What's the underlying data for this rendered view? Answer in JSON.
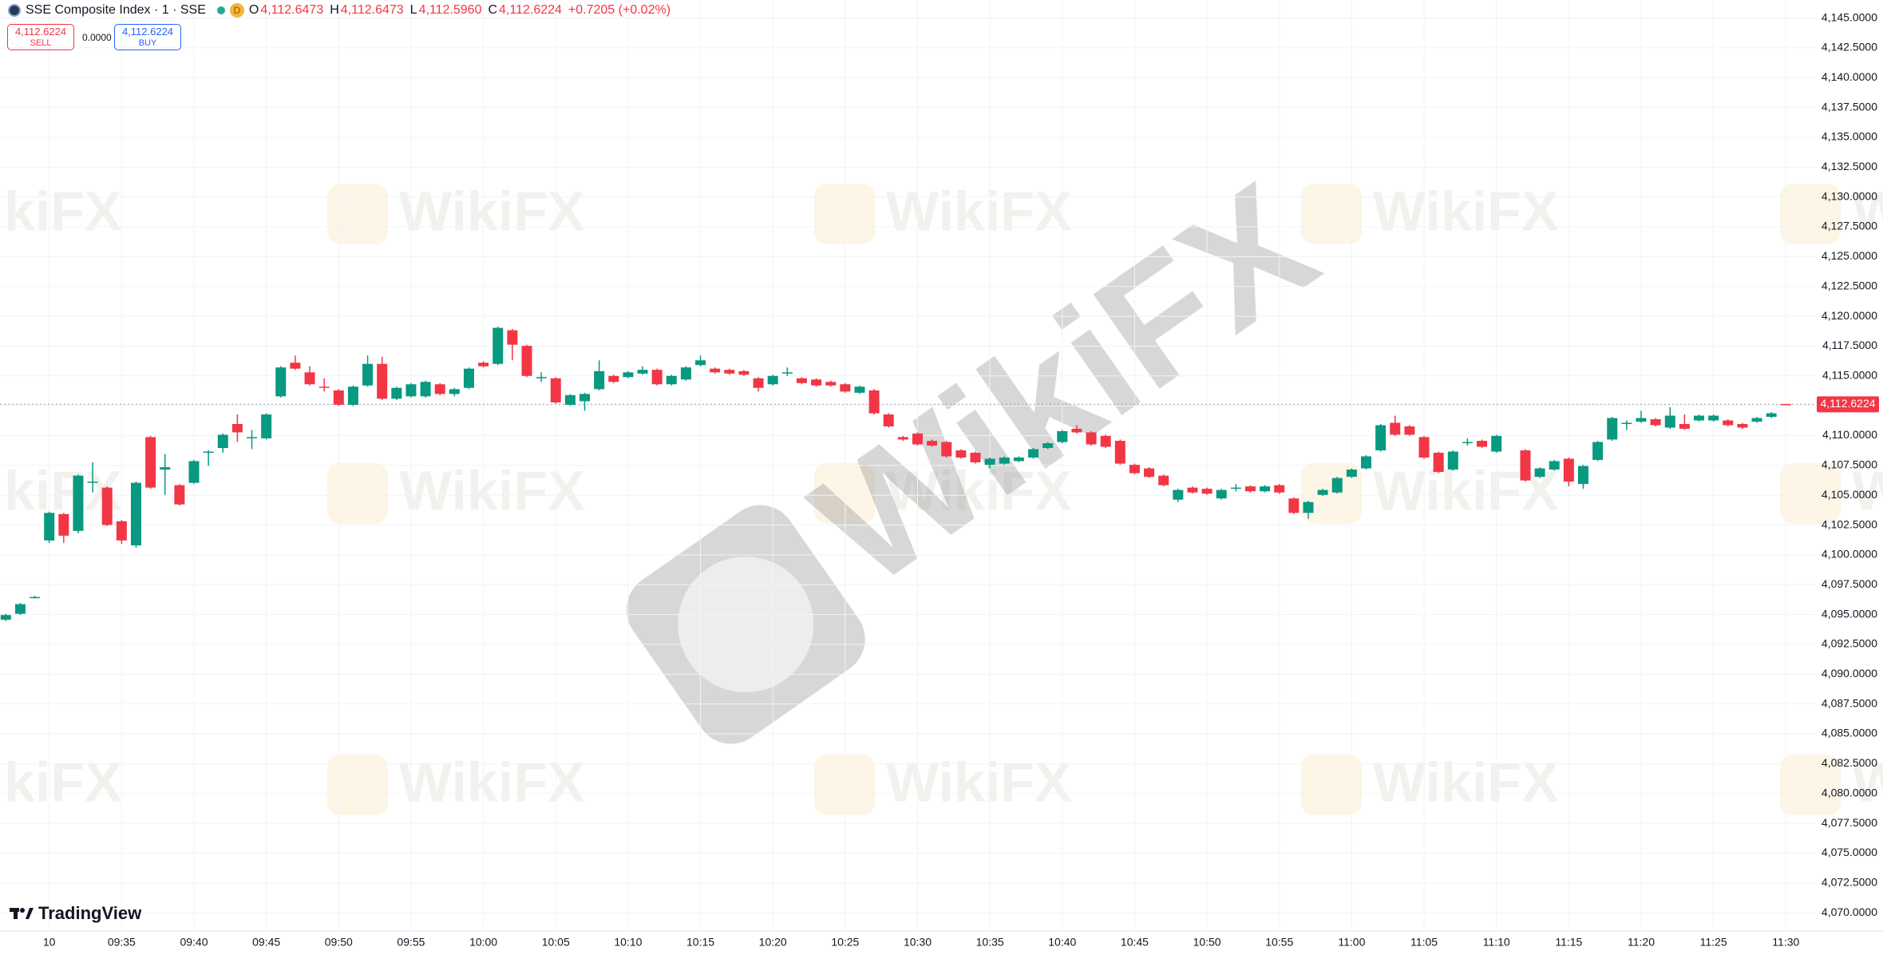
{
  "chart_data": {
    "type": "candlestick",
    "title": "SSE Composite Index · 1 · SSE",
    "badge": "D",
    "ohlc_header": {
      "open_label": "O",
      "open": "4,112.6473",
      "high_label": "H",
      "high": "4,112.6473",
      "low_label": "L",
      "low": "4,112.5960",
      "close_label": "C",
      "close": "4,112.6224",
      "change": "+0.7205 (+0.02%)"
    },
    "trade": {
      "sell_price": "4,112.6224",
      "sell_label": "SELL",
      "spread": "0.0000",
      "buy_price": "4,112.6224",
      "buy_label": "BUY"
    },
    "categories": [
      null,
      null,
      null,
      "10",
      null,
      null,
      null,
      null,
      "09:35",
      null,
      null,
      null,
      null,
      "09:40",
      null,
      null,
      null,
      null,
      "09:45",
      null,
      null,
      null,
      null,
      "09:50",
      null,
      null,
      null,
      null,
      "09:55",
      null,
      null,
      null,
      null,
      "10:00",
      null,
      null,
      null,
      null,
      "10:05",
      null,
      null,
      null,
      null,
      "10:10",
      null,
      null,
      null,
      null,
      "10:15",
      null,
      null,
      null,
      null,
      "10:20",
      null,
      null,
      null,
      null,
      "10:25",
      null,
      null,
      null,
      null,
      "10:30",
      null,
      null,
      null,
      null,
      "10:35",
      null,
      null,
      null,
      null,
      "10:40",
      null,
      null,
      null,
      null,
      "10:45",
      null,
      null,
      null,
      null,
      "10:50",
      null,
      null,
      null,
      null,
      "10:55",
      null,
      null,
      null,
      null,
      "11:00",
      null,
      null,
      null,
      null,
      "11:05",
      null,
      null,
      null,
      null,
      "11:10",
      null,
      null,
      null,
      null,
      "11:15",
      null,
      null,
      null,
      null,
      "11:20",
      null,
      null,
      null,
      null,
      "11:25",
      null,
      null,
      null,
      null,
      "11:30"
    ],
    "open": [
      4094.56,
      4095.06,
      4096.47,
      4101.21,
      4103.42,
      4102.01,
      4106.04,
      4105.64,
      4102.82,
      4100.8,
      4109.87,
      4107.15,
      4105.84,
      4106.04,
      4108.56,
      4108.96,
      4110.97,
      4109.77,
      4109.77,
      4113.29,
      4116.11,
      4115.3,
      4114.1,
      4113.79,
      4112.58,
      4114.2,
      4116.01,
      4113.09,
      4113.29,
      4113.29,
      4114.3,
      4113.49,
      4114.0,
      4116.11,
      4116.01,
      4118.83,
      4117.52,
      4114.9,
      4114.8,
      4112.58,
      4112.88,
      4113.89,
      4115.0,
      4114.9,
      4115.2,
      4115.51,
      4114.3,
      4114.7,
      4115.91,
      4115.61,
      4115.51,
      4115.4,
      4114.8,
      4114.3,
      4115.3,
      4114.8,
      4114.7,
      4114.5,
      4114.3,
      4113.59,
      4113.79,
      4111.77,
      4109.87,
      4110.17,
      4109.56,
      4109.46,
      4108.76,
      4108.56,
      4107.55,
      4107.65,
      4107.86,
      4108.16,
      4108.96,
      4109.46,
      4110.57,
      4110.27,
      4109.97,
      4109.56,
      4107.55,
      4107.25,
      4106.64,
      4104.63,
      4105.64,
      4105.54,
      4104.73,
      4105.64,
      4105.74,
      4105.33,
      4105.84,
      4104.73,
      4103.52,
      4105.03,
      4105.23,
      4106.54,
      4107.25,
      4108.76,
      4111.07,
      4110.77,
      4109.87,
      4108.56,
      4107.15,
      4109.46,
      4109.56,
      4108.66,
      null,
      4108.76,
      4106.54,
      4107.15,
      4108.06,
      4105.94,
      4107.96,
      4109.67,
      4110.97,
      4111.17,
      4111.37,
      4110.67,
      4110.97,
      4111.27,
      4111.27,
      4111.27,
      4110.97,
      4111.17,
      4111.57,
      4112.6473
    ],
    "high": [
      4095.06,
      4095.97,
      4096.57,
      4103.62,
      4103.52,
      4106.74,
      4107.76,
      4105.74,
      4102.92,
      4106.14,
      4109.97,
      4108.46,
      4105.94,
      4107.96,
      4108.76,
      4110.17,
      4111.77,
      4110.47,
      4111.87,
      4115.81,
      4116.71,
      4115.81,
      4114.8,
      4113.89,
      4114.2,
      4116.71,
      4116.61,
      4114.1,
      4114.4,
      4114.6,
      4114.4,
      4114.0,
      4115.71,
      4116.21,
      4119.13,
      4118.93,
      4117.62,
      4115.3,
      4114.9,
      4113.49,
      4113.59,
      4116.31,
      4115.1,
      4115.4,
      4115.81,
      4115.61,
      4115.1,
      4115.81,
      4116.71,
      4115.71,
      4115.61,
      4115.51,
      4114.9,
      4115.1,
      4115.71,
      4114.9,
      4114.8,
      4114.6,
      4114.4,
      4114.2,
      4113.89,
      4111.87,
      4109.97,
      4110.27,
      4109.67,
      4109.56,
      4108.86,
      4108.66,
      4108.16,
      4108.26,
      4108.26,
      4108.96,
      4109.46,
      4110.47,
      4110.87,
      4110.37,
      4110.07,
      4109.67,
      4107.65,
      4107.35,
      4106.74,
      4105.54,
      4105.74,
      4105.64,
      4105.54,
      4105.94,
      4105.84,
      4105.84,
      4105.94,
      4104.83,
      4104.53,
      4105.54,
      4106.54,
      4107.25,
      4108.36,
      4110.97,
      4111.67,
      4110.87,
      4109.97,
      4108.66,
      4108.76,
      4109.76,
      4109.67,
      4110.07,
      null,
      4108.86,
      4107.35,
      4107.96,
      4108.16,
      4107.55,
      4109.56,
      4111.57,
      4111.27,
      4112.08,
      4111.47,
      4112.38,
      4111.77,
      4111.77,
      4111.77,
      4111.37,
      4111.07,
      4111.57,
      4111.97,
      4112.6473
    ],
    "low": [
      4094.46,
      4094.96,
      4096.37,
      4101.0,
      4101.0,
      4101.81,
      4105.23,
      4102.41,
      4100.91,
      4100.6,
      4105.54,
      4105.03,
      4104.13,
      4105.94,
      4107.46,
      4108.56,
      4109.46,
      4108.86,
      4109.67,
      4113.19,
      4115.51,
      4114.2,
      4113.69,
      4112.48,
      4112.48,
      4114.1,
      4112.98,
      4112.98,
      4113.19,
      4113.19,
      4113.39,
      4113.29,
      4113.89,
      4115.71,
      4115.91,
      4116.31,
      4114.9,
      4114.5,
      4112.68,
      4112.48,
      4112.08,
      4113.79,
      4114.4,
      4114.8,
      4115.1,
      4114.2,
      4114.2,
      4114.6,
      4115.81,
      4115.2,
      4115.1,
      4115.0,
      4113.69,
      4114.2,
      4115.0,
      4114.3,
      4114.1,
      4114.1,
      4113.59,
      4113.49,
      4111.77,
      4110.67,
      4109.56,
      4109.16,
      4109.06,
      4108.16,
      4108.06,
      4107.65,
      4107.25,
      4107.55,
      4107.76,
      4108.06,
      4108.86,
      4109.36,
      4110.17,
      4109.16,
      4108.96,
      4107.55,
      4106.75,
      4106.44,
      4105.74,
      4104.43,
      4105.13,
      4105.03,
      4104.63,
      4105.33,
      4105.23,
      4105.23,
      4105.13,
      4103.42,
      4103.02,
      4104.93,
      4105.13,
      4106.44,
      4107.15,
      4108.66,
      4109.97,
      4109.97,
      4108.06,
      4106.85,
      4107.05,
      4109.16,
      4108.96,
      4108.56,
      null,
      4106.14,
      4106.44,
      4107.05,
      4105.74,
      4105.54,
      4107.86,
      4109.56,
      4110.47,
      4111.07,
      4110.77,
      4110.57,
      4110.47,
      4111.17,
      4111.17,
      4110.77,
      4110.57,
      4111.07,
      4111.47,
      4112.596
    ],
    "close": [
      4094.96,
      4095.87,
      4096.47,
      4103.52,
      4101.61,
      4106.64,
      4106.14,
      4102.51,
      4101.21,
      4106.04,
      4105.64,
      4107.35,
      4104.23,
      4107.86,
      4108.66,
      4110.07,
      4110.27,
      4109.87,
      4111.77,
      4115.71,
      4115.61,
      4114.3,
      4114.0,
      4112.58,
      4114.1,
      4116.01,
      4113.09,
      4114.0,
      4114.3,
      4114.5,
      4113.49,
      4113.89,
      4115.61,
      4115.81,
      4119.03,
      4117.62,
      4115.0,
      4114.9,
      4112.78,
      4113.39,
      4113.49,
      4115.4,
      4114.5,
      4115.3,
      4115.51,
      4114.3,
      4115.0,
      4115.71,
      4116.31,
      4115.3,
      4115.2,
      4115.1,
      4114.0,
      4115.0,
      4115.3,
      4114.4,
      4114.2,
      4114.2,
      4113.69,
      4114.1,
      4111.87,
      4110.77,
      4109.67,
      4109.26,
      4109.16,
      4108.26,
      4108.16,
      4107.76,
      4108.06,
      4108.16,
      4108.16,
      4108.86,
      4109.36,
      4110.37,
      4110.27,
      4109.26,
      4109.06,
      4107.65,
      4106.85,
      4106.54,
      4105.84,
      4105.44,
      4105.23,
      4105.13,
      4105.44,
      4105.64,
      4105.33,
      4105.74,
      4105.23,
      4103.52,
      4104.43,
      4105.44,
      4106.44,
      4107.15,
      4108.26,
      4110.87,
      4110.07,
      4110.07,
      4108.16,
      4106.95,
      4108.66,
      4109.46,
      4109.06,
      4109.97,
      null,
      4106.24,
      4107.25,
      4107.86,
      4106.14,
      4107.45,
      4109.46,
      4111.47,
      4111.07,
      4111.47,
      4110.87,
      4111.67,
      4110.57,
      4111.67,
      4111.67,
      4110.87,
      4110.67,
      4111.47,
      4111.87,
      4112.6224
    ],
    "up_color": "#089981",
    "down_color": "#f23645",
    "last_price": {
      "value": 4112.6224,
      "label": "4,112.6224"
    },
    "ylim": [
      4068.47,
      4146.51
    ],
    "yticks": [
      {
        "value": 4070,
        "label": "4,070.0000"
      },
      {
        "value": 4072.5,
        "label": "4,072.5000"
      },
      {
        "value": 4075,
        "label": "4,075.0000"
      },
      {
        "value": 4077.5,
        "label": "4,077.5000"
      },
      {
        "value": 4080,
        "label": "4,080.0000"
      },
      {
        "value": 4082.5,
        "label": "4,082.5000"
      },
      {
        "value": 4085,
        "label": "4,085.0000"
      },
      {
        "value": 4087.5,
        "label": "4,087.5000"
      },
      {
        "value": 4090,
        "label": "4,090.0000"
      },
      {
        "value": 4092.5,
        "label": "4,092.5000"
      },
      {
        "value": 4095,
        "label": "4,095.0000"
      },
      {
        "value": 4097.5,
        "label": "4,097.5000"
      },
      {
        "value": 4100,
        "label": "4,100.0000"
      },
      {
        "value": 4102.5,
        "label": "4,102.5000"
      },
      {
        "value": 4105,
        "label": "4,105.0000"
      },
      {
        "value": 4107.5,
        "label": "4,107.5000"
      },
      {
        "value": 4110,
        "label": "4,110.0000"
      },
      {
        "value": 4112.5,
        "label": "4,112.5000"
      },
      {
        "value": 4115,
        "label": "4,115.0000"
      },
      {
        "value": 4117.5,
        "label": "4,117.5000"
      },
      {
        "value": 4120,
        "label": "4,120.0000"
      },
      {
        "value": 4122.5,
        "label": "4,122.5000"
      },
      {
        "value": 4125,
        "label": "4,125.0000"
      },
      {
        "value": 4127.5,
        "label": "4,127.5000"
      },
      {
        "value": 4130,
        "label": "4,130.0000"
      },
      {
        "value": 4132.5,
        "label": "4,132.5000"
      },
      {
        "value": 4135,
        "label": "4,135.0000"
      },
      {
        "value": 4137.5,
        "label": "4,137.5000"
      },
      {
        "value": 4140,
        "label": "4,140.0000"
      },
      {
        "value": 4142.5,
        "label": "4,142.5000"
      },
      {
        "value": 4145,
        "label": "4,145.0000"
      }
    ],
    "grid": true
  },
  "brand": "TradingView",
  "watermark": "WikiFX"
}
